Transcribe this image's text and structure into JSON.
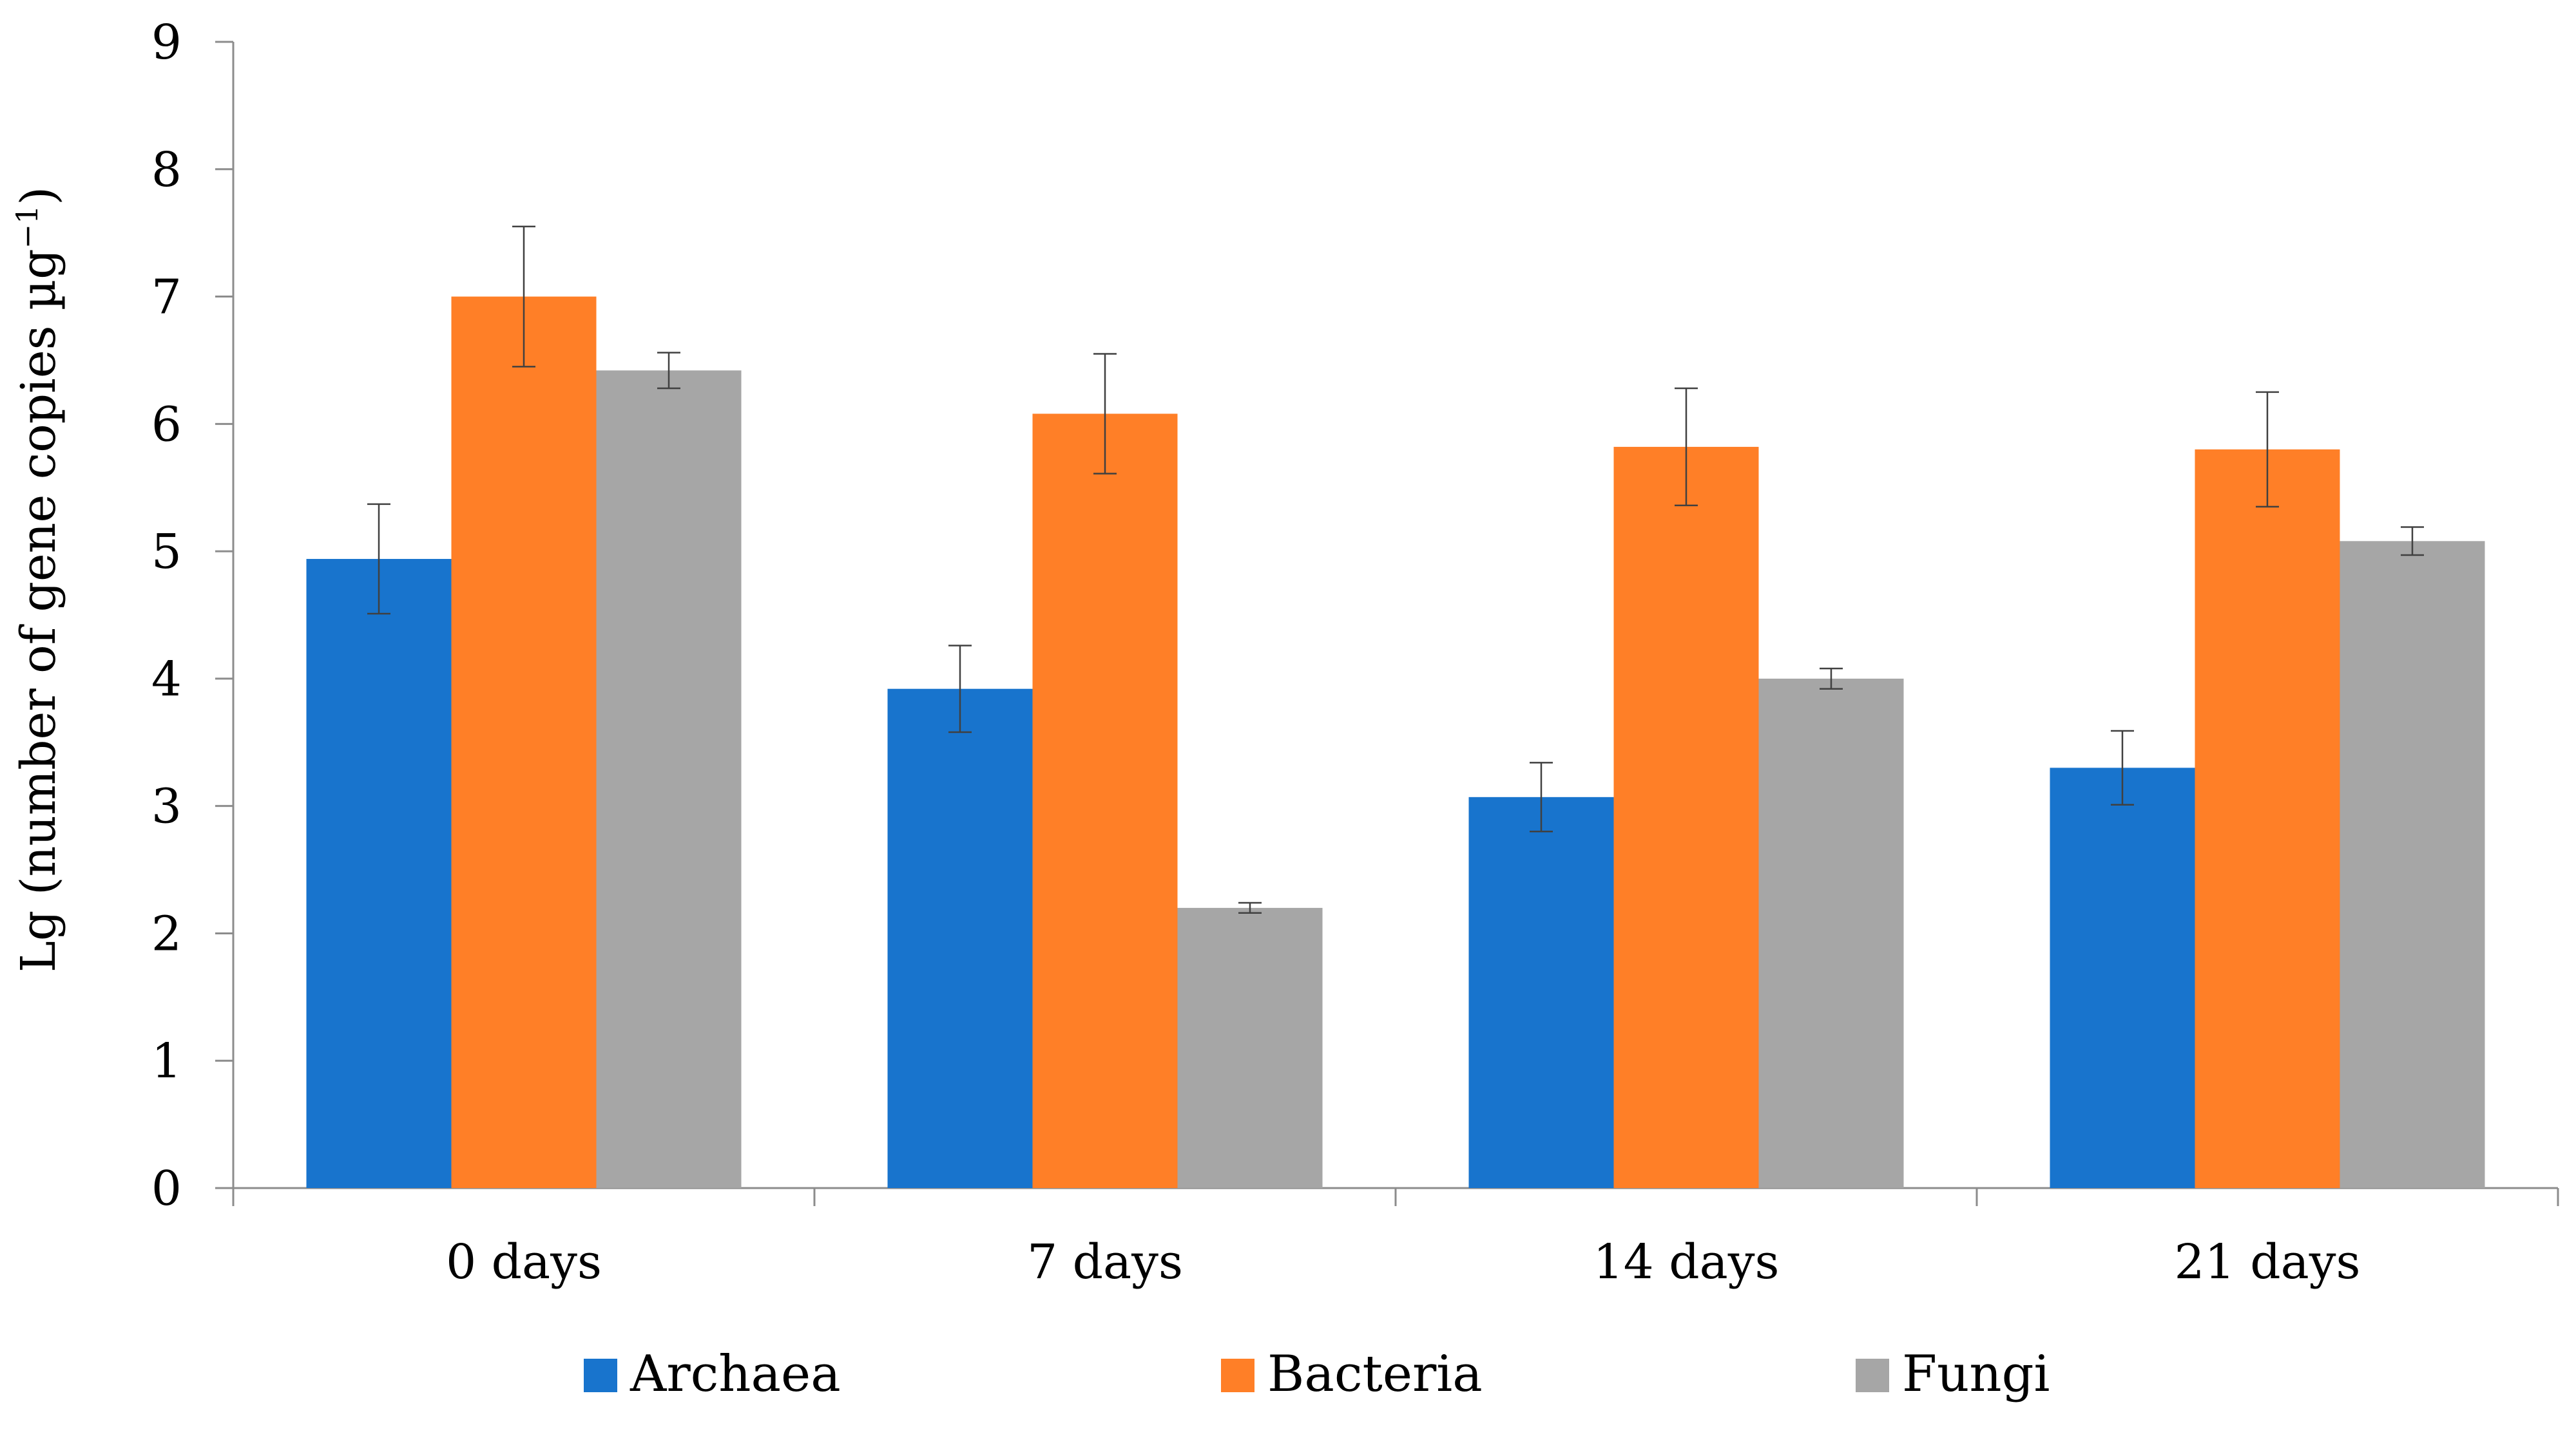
{
  "chart_data": {
    "type": "bar",
    "title": "",
    "xlabel": "",
    "ylabel": "Lg (number of gene copies µg",
    "ylabel_sup": "−1",
    "ylabel_close": ")",
    "categories": [
      "0 days",
      "7 days",
      "14 days",
      "21 days"
    ],
    "series": [
      {
        "name": "Archaea",
        "color": "#1874CD",
        "values": [
          4.94,
          3.92,
          3.07,
          3.3
        ],
        "errors": [
          0.43,
          0.34,
          0.27,
          0.29
        ]
      },
      {
        "name": "Bacteria",
        "color": "#FF7F27",
        "values": [
          7.0,
          6.08,
          5.82,
          5.8
        ],
        "errors": [
          0.55,
          0.47,
          0.46,
          0.45
        ]
      },
      {
        "name": "Fungi",
        "color": "#A6A6A6",
        "values": [
          6.42,
          2.2,
          4.0,
          5.08
        ],
        "errors": [
          0.14,
          0.04,
          0.08,
          0.11
        ]
      }
    ],
    "ylim": [
      0,
      9
    ],
    "yticks": [
      0,
      1,
      2,
      3,
      4,
      5,
      6,
      7,
      8,
      9
    ],
    "grid": false,
    "legend_position": "bottom"
  }
}
